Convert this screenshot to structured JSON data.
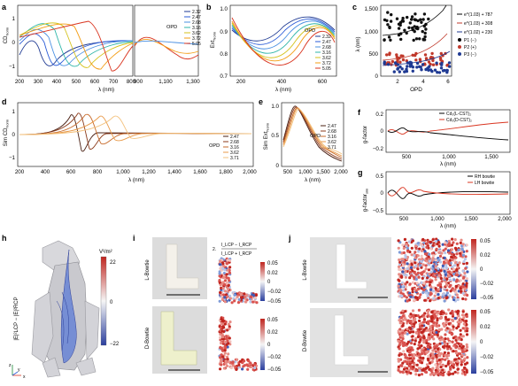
{
  "panels": {
    "a": {
      "label": "a",
      "ylabel": "CD",
      "ylabel_sub": "Norm",
      "xlabel": "λ (nm)",
      "left_xticks": [
        "200",
        "300",
        "400",
        "500",
        "600",
        "700",
        "800"
      ],
      "right_xticks": [
        "900",
        "1,100",
        "1,300"
      ],
      "yticks": [
        "1",
        "0",
        "−1"
      ],
      "legend_title": "OPD",
      "legend": [
        "2.32",
        "2.47",
        "2.68",
        "3.16",
        "3.62",
        "3.72",
        "5.05"
      ],
      "colors": [
        "#1f3a93",
        "#2a5bd7",
        "#4a90e2",
        "#2eb5a8",
        "#d4c21a",
        "#f39c12",
        "#d9341f"
      ]
    },
    "b": {
      "label": "b",
      "ylabel": "Ext",
      "ylabel_sub": "Norm",
      "xlabel": "λ (nm)",
      "xticks": [
        "200",
        "400",
        "600"
      ],
      "yticks": [
        "1.0",
        "0.9",
        "0.8",
        "0.7"
      ],
      "legend_title": "OPD",
      "legend": [
        "2.32",
        "2.47",
        "2.68",
        "3.16",
        "3.62",
        "3.72",
        "5.05"
      ]
    },
    "c": {
      "label": "c",
      "ylabel": "λ (nm)",
      "xlabel": "OPD",
      "xticks": [
        "2",
        "4",
        "6"
      ],
      "yticks": [
        "1,500",
        "1,000",
        "500",
        "0"
      ],
      "legend": [
        "e^(1.03) + 787",
        "e^(1.03) + 308",
        "e^(1.02) + 230",
        "P1 (−)",
        "P2 (+)",
        "P3 (−)"
      ]
    },
    "d": {
      "label": "d",
      "ylabel": "Sim CD",
      "ylabel_sub": "Norm",
      "xlabel": "λ (nm)",
      "xticks": [
        "200",
        "400",
        "600",
        "800",
        "1,000",
        "1,200",
        "1,400",
        "1,600",
        "1,800",
        "2,000"
      ],
      "yticks": [
        "1",
        "0",
        "−1"
      ],
      "legend_title": "OPD",
      "legend": [
        "2.47",
        "2.68",
        "3.16",
        "3.62",
        "3.71"
      ]
    },
    "e": {
      "label": "e",
      "ylabel": "Sim Ext",
      "ylabel_sub": "Norm",
      "xlabel": "λ (nm)",
      "xticks": [
        "500",
        "1,000",
        "1,500",
        "2,000"
      ],
      "yticks": [
        "1.0",
        "0.5",
        "0"
      ],
      "legend_title": "OPD",
      "legend": [
        "2.47",
        "2.68",
        "3.16",
        "3.62",
        "3.71"
      ]
    },
    "f": {
      "label": "f",
      "ylabel": "g-factor",
      "xlabel": "λ (nm)",
      "xticks": [
        "500",
        "1,000",
        "1,500"
      ],
      "yticks": [
        "0.2",
        "0",
        "−0.2"
      ],
      "legend": [
        "Cd₃(L-CST)₂",
        "Cd₃(D-CST)₂"
      ]
    },
    "g": {
      "label": "g",
      "ylabel": "g-factor",
      "ylabel_sub": "sim",
      "xlabel": "λ (nm)",
      "xticks": [
        "500",
        "1,000",
        "1,500",
        "2,000"
      ],
      "yticks": [
        "0.5",
        "0",
        "−0.5"
      ],
      "legend": [
        "RH bowtie",
        "LH bowtie"
      ]
    },
    "h": {
      "label": "h",
      "colorbar_title": "V²/m²",
      "colorbar_ticks": [
        "22",
        "0",
        "−22"
      ],
      "ylabel": "|E|²LCP − |E|²RCP",
      "axes": [
        "z",
        "y",
        "x"
      ]
    },
    "i": {
      "label": "i",
      "row_labels": [
        "L-Bowtie",
        "D-Bowtie"
      ],
      "formula_num": "I_LCP − I_RCP",
      "formula_den": "I_LCP + I_RCP",
      "formula_prefix": "2.",
      "colorbar_ticks": [
        "0.05",
        "0.02",
        "0",
        "−0.02",
        "−0.05"
      ]
    },
    "j": {
      "label": "j",
      "row_labels": [
        "L-Bowtie",
        "D-Bowtie"
      ],
      "colorbar_ticks": [
        "0.05",
        "0.02",
        "0",
        "−0.02",
        "−0.05"
      ]
    }
  }
}
